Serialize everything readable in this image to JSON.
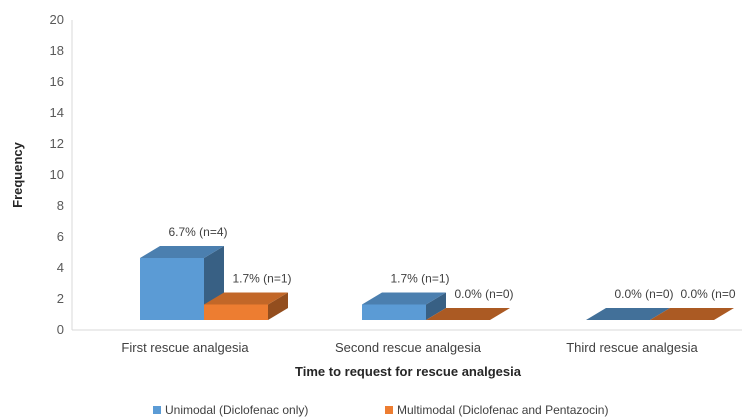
{
  "chart_data": {
    "type": "bar",
    "style": "3d-clustered-column",
    "categories": [
      "First rescue analgesia",
      "Second rescue analgesia",
      "Third rescue analgesia"
    ],
    "series": [
      {
        "name": "Unimodal (Diclofenac only)",
        "values": [
          4,
          1,
          0
        ],
        "color": "#5B9BD5",
        "data_labels": [
          "6.7% (n=4)",
          "1.7% (n=1)",
          "0.0% (n=0)"
        ]
      },
      {
        "name": "Multimodal (Diclofenac and Pentazocin)",
        "values": [
          1,
          0,
          0
        ],
        "color": "#ED7D31",
        "data_labels": [
          "1.7% (n=1)",
          "0.0% (n=0)",
          "0.0% (n=0"
        ]
      }
    ],
    "xlabel": "Time to request for rescue analgesia",
    "ylabel": "Frequency",
    "ylim": [
      0,
      20
    ],
    "yticks": [
      "0",
      "2",
      "4",
      "6",
      "8",
      "10",
      "12",
      "14",
      "16",
      "18",
      "20"
    ],
    "grid": false,
    "legend_position": "bottom"
  }
}
